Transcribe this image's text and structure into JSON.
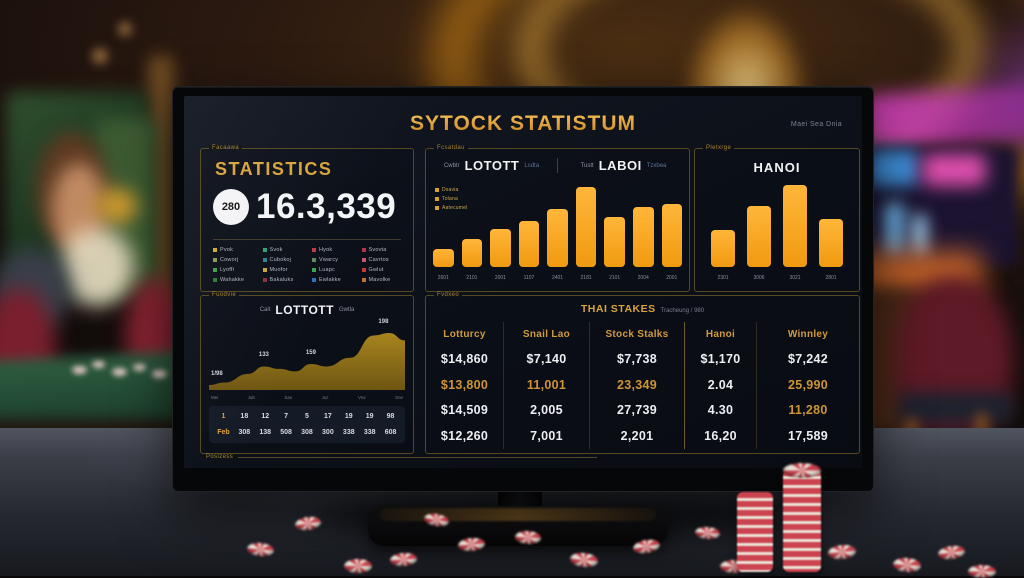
{
  "colors": {
    "accent_gold": "#f6a525",
    "title_gold": "#e9a83e",
    "panel_border": "#57491f",
    "screen_bg": "#0d1119",
    "area_fill": "#9a7a1d",
    "value_white": "#eceef2",
    "value_gold": "#cf9434"
  },
  "screen": {
    "title": "SYTOCK STATISTUM",
    "top_right_note": "Maei Sea Dnia",
    "bottom_label": "Posizess"
  },
  "stats_panel": {
    "frame_label": "Facaawa",
    "title": "STATISTICS",
    "badge": "280",
    "big_number": "16.3,339",
    "legend": [
      {
        "label": "Pvok",
        "color": "#cfac2f"
      },
      {
        "label": "Svok",
        "color": "#2fa376"
      },
      {
        "label": "Hyok",
        "color": "#c23a4a"
      },
      {
        "label": "Svovta",
        "color": "#b2324a"
      },
      {
        "label": "Coworj",
        "color": "#8a9a4b"
      },
      {
        "label": "Cubokoj",
        "color": "#2f7f92"
      },
      {
        "label": "Vwarcy",
        "color": "#5f8a5f"
      },
      {
        "label": "Cavrtos",
        "color": "#c2566a"
      },
      {
        "label": "Lyoffi",
        "color": "#3f9e4b"
      },
      {
        "label": "Muofor",
        "color": "#c9a92f"
      },
      {
        "label": "Luapc",
        "color": "#3fa34f"
      },
      {
        "label": "Gwlut",
        "color": "#c23a3a"
      },
      {
        "label": "Wahakke",
        "color": "#2f7a3a"
      },
      {
        "label": "Bakaluks",
        "color": "#8f2f3f"
      },
      {
        "label": "Ewlakke",
        "color": "#2f6fc2"
      },
      {
        "label": "Mavolke",
        "color": "#c2742f"
      }
    ]
  },
  "bars_panel": {
    "frame_label": "Fcsatdau",
    "headers": [
      {
        "pre": "Cwbtr",
        "title": "LOTOTT",
        "post": "Lsdta"
      },
      {
        "pre": "Tustt",
        "title": "LABOI",
        "post": "Tzxbea"
      }
    ],
    "legend": [
      "Dsavia",
      "Tolana",
      "Aatecumel"
    ]
  },
  "hanoi_panel": {
    "frame_label": "Pletxrge",
    "title": "HANOI"
  },
  "area_panel": {
    "frame_label": "Fuodvie",
    "header": {
      "pre": "Cait",
      "title": "LOTTOTT",
      "post": "Gwtla"
    },
    "calendar": {
      "row1": [
        "1",
        "18",
        "12",
        "7",
        "5",
        "17",
        "19",
        "19",
        "98"
      ],
      "row2": [
        "Feb",
        "308",
        "138",
        "508",
        "308",
        "300",
        "338",
        "338",
        "608"
      ]
    }
  },
  "table_panel": {
    "frame_label": "Fvdxeo",
    "title": "THAI STAKES",
    "subtitle": "Tracheung / 980"
  },
  "chart_data": [
    {
      "type": "bar",
      "title": "LOTOTT / LABOI",
      "categories": [
        "2601",
        "2101",
        "2001",
        "1107",
        "2401",
        "2181",
        "2101",
        "2004",
        "2001"
      ],
      "values": [
        23,
        35,
        48,
        58,
        73,
        100,
        62,
        75,
        79
      ],
      "ylim": [
        0,
        100
      ],
      "grid": false,
      "legend_position": "top-left",
      "bar_color": "#f6a525"
    },
    {
      "type": "bar",
      "title": "HANOI",
      "categories": [
        "2301",
        "3006",
        "3021",
        "2801"
      ],
      "values": [
        45,
        75,
        100,
        58
      ],
      "ylim": [
        0,
        100
      ],
      "grid": false,
      "bar_color": "#f6a525"
    },
    {
      "type": "area",
      "title": "LOTTOTT",
      "x": [
        0,
        8,
        20,
        28,
        36,
        44,
        52,
        60,
        72,
        84,
        92,
        100
      ],
      "values": [
        8,
        12,
        26,
        38,
        34,
        30,
        42,
        38,
        52,
        88,
        92,
        80
      ],
      "point_labels": [
        {
          "text": "1/98",
          "x": 4,
          "y": 16
        },
        {
          "text": "133",
          "x": 28,
          "y": 46
        },
        {
          "text": "159",
          "x": 52,
          "y": 50
        },
        {
          "text": "198",
          "x": 89,
          "y": 100
        }
      ],
      "x_labels": [
        "Mei",
        "Jub",
        "Sas",
        "Juz",
        "Vrw",
        "Sne"
      ],
      "ylim": [
        0,
        100
      ],
      "fill_color": "#9a7a1d"
    },
    {
      "type": "table",
      "title": "THAI STAKES",
      "columns": [
        "Lotturcy",
        "Snail Lao",
        "Stock Stalks",
        "Hanoi",
        "Winnley"
      ],
      "rows": [
        [
          "$14,860",
          "$7,140",
          "$7,738",
          "$1,170",
          "$7,242"
        ],
        [
          "$13,800",
          "11,001",
          "23,349",
          "2.04",
          "25,990"
        ],
        [
          "$14,509",
          "2,005",
          "27,739",
          "4.30",
          "11,280"
        ],
        [
          "$12,260",
          "7,001",
          "2,201",
          "16,20",
          "17,589"
        ]
      ],
      "gold_cells": [
        [],
        [
          0,
          1,
          2,
          4
        ],
        [
          4
        ],
        []
      ]
    }
  ]
}
